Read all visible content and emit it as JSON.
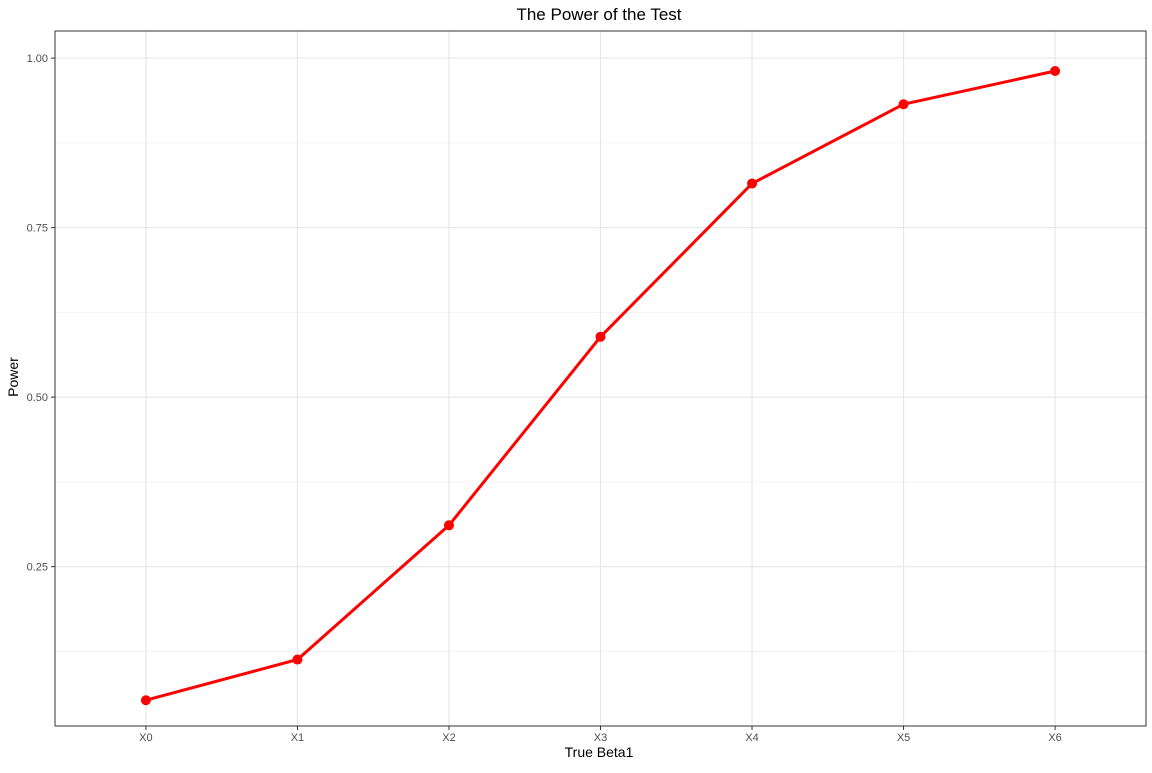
{
  "chart_data": {
    "type": "line",
    "title": "The Power of the Test",
    "xlabel": "True Beta1",
    "ylabel": "Power",
    "categories": [
      "X0",
      "X1",
      "X2",
      "X3",
      "X4",
      "X5",
      "X6"
    ],
    "series": [
      {
        "values": [
          0.053,
          0.113,
          0.311,
          0.589,
          0.815,
          0.932,
          0.981
        ],
        "color": "#ff0000"
      }
    ],
    "ylim": [
      0.015,
      1.04
    ],
    "yticks": [
      0.25,
      0.5,
      0.75,
      1.0
    ],
    "ytick_labels": [
      "0.25",
      "0.50",
      "0.75",
      "1.00"
    ],
    "grid": true,
    "markers": true,
    "legend": "none"
  }
}
